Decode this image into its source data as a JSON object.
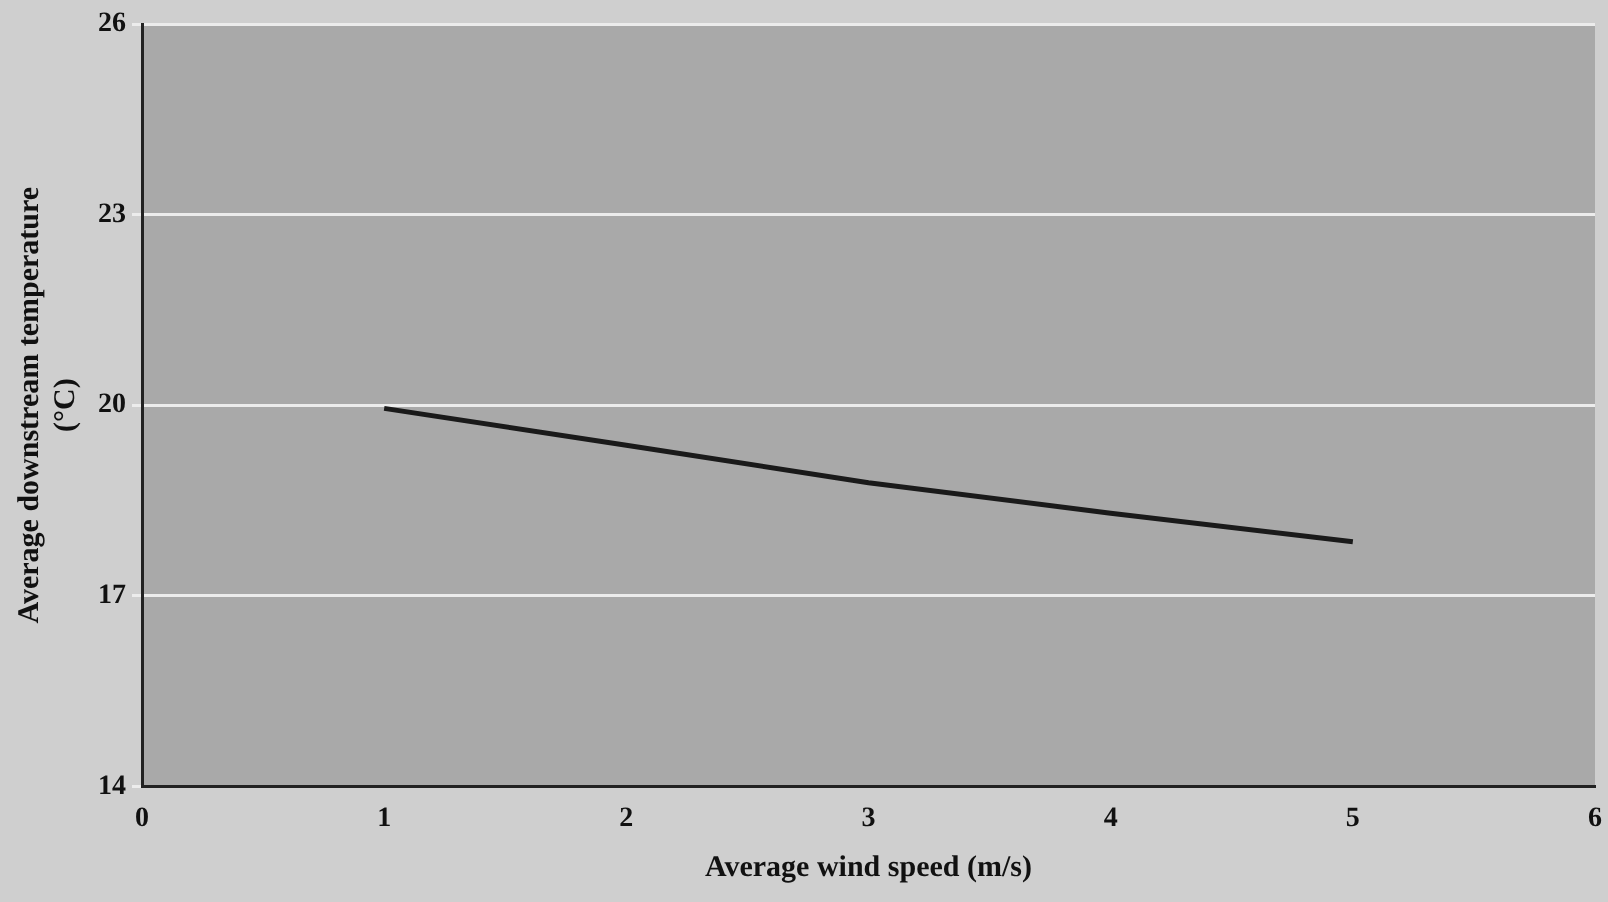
{
  "chart_data": {
    "type": "line",
    "xlabel": "Average wind speed (m/s)",
    "ylabel": "Average downstream temperature (°C)",
    "x": [
      1,
      2,
      3,
      4,
      5
    ],
    "series": [
      {
        "color": "#1a1a1a",
        "values": [
          19.95,
          19.37,
          18.78,
          18.3,
          17.85
        ]
      }
    ],
    "xlim": [
      0,
      6
    ],
    "xticks": [
      0,
      1,
      2,
      3,
      4,
      5,
      6
    ],
    "ylim": [
      14,
      26
    ],
    "yticks": [
      14,
      17,
      20,
      23,
      26
    ],
    "grid": "y",
    "legend": false,
    "marker": "none",
    "line_style": "solid"
  }
}
